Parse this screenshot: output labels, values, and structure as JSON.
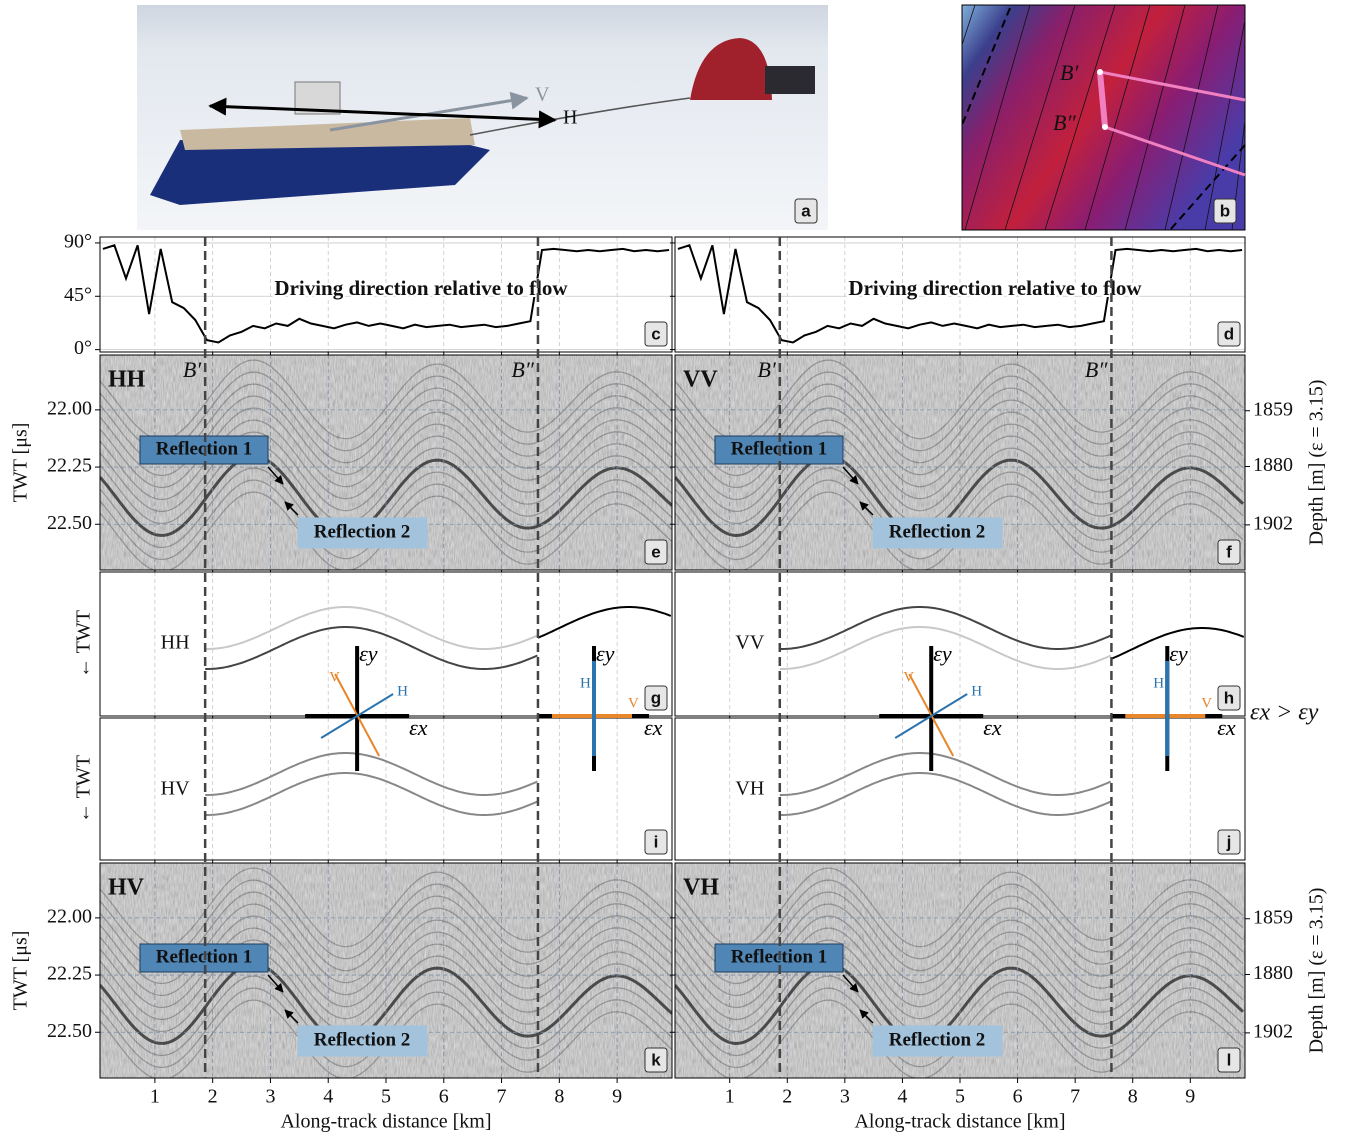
{
  "photo": {
    "panel_label": "a",
    "arrow_labels": [
      "V",
      "H"
    ]
  },
  "map": {
    "panel_label": "b"
  },
  "section_bounds": {
    "values": [
      1.87,
      7.63
    ],
    "labels": [
      "B′",
      "B″"
    ]
  },
  "chart_data": [
    {
      "type": "line",
      "panel_label": "c",
      "annotation": "Driving direction relative to flow",
      "color": "#000000",
      "x": [
        0.1,
        0.3,
        0.5,
        0.7,
        0.9,
        1.1,
        1.3,
        1.5,
        1.7,
        1.9,
        2.1,
        2.3,
        2.5,
        2.7,
        2.9,
        3.1,
        3.3,
        3.5,
        3.7,
        3.9,
        4.1,
        4.3,
        4.5,
        4.7,
        4.9,
        5.1,
        5.3,
        5.5,
        5.7,
        5.9,
        6.1,
        6.3,
        6.5,
        6.7,
        6.9,
        7.1,
        7.3,
        7.5,
        7.7,
        7.9,
        8.1,
        8.3,
        8.5,
        8.7,
        8.9,
        9.1,
        9.3,
        9.5,
        9.7,
        9.9
      ],
      "values": [
        85,
        88,
        60,
        88,
        30,
        85,
        40,
        35,
        25,
        8,
        6,
        12,
        15,
        20,
        18,
        22,
        20,
        26,
        22,
        20,
        18,
        21,
        23,
        20,
        22,
        20,
        18,
        21,
        19,
        20,
        21,
        19,
        20,
        21,
        19,
        20,
        22,
        24,
        84,
        85,
        84,
        83,
        84,
        83,
        84,
        85,
        83,
        84,
        83,
        84
      ],
      "xlim": [
        0.05,
        9.95
      ],
      "xticks": [
        1,
        2,
        3,
        4,
        5,
        6,
        7,
        8,
        9
      ],
      "ylim": [
        -2,
        95
      ],
      "yticks": [
        {
          "value": 0,
          "label": "0°"
        },
        {
          "value": 45,
          "label": "45°"
        },
        {
          "value": 90,
          "label": "90°"
        }
      ],
      "grid": true
    },
    {
      "type": "line",
      "panel_label": "d",
      "annotation": "Driving direction relative to flow",
      "color": "#000000",
      "x": [
        0.1,
        0.3,
        0.5,
        0.7,
        0.9,
        1.1,
        1.3,
        1.5,
        1.7,
        1.9,
        2.1,
        2.3,
        2.5,
        2.7,
        2.9,
        3.1,
        3.3,
        3.5,
        3.7,
        3.9,
        4.1,
        4.3,
        4.5,
        4.7,
        4.9,
        5.1,
        5.3,
        5.5,
        5.7,
        5.9,
        6.1,
        6.3,
        6.5,
        6.7,
        6.9,
        7.1,
        7.3,
        7.5,
        7.7,
        7.9,
        8.1,
        8.3,
        8.5,
        8.7,
        8.9,
        9.1,
        9.3,
        9.5,
        9.7,
        9.9
      ],
      "values": [
        85,
        88,
        60,
        88,
        30,
        85,
        40,
        35,
        25,
        8,
        6,
        12,
        15,
        20,
        18,
        22,
        20,
        26,
        22,
        20,
        18,
        21,
        23,
        20,
        22,
        20,
        18,
        21,
        19,
        20,
        21,
        19,
        20,
        21,
        19,
        20,
        22,
        24,
        84,
        85,
        84,
        83,
        84,
        83,
        84,
        85,
        83,
        84,
        83,
        84
      ],
      "xlim": [
        0.05,
        9.95
      ],
      "xticks": [
        1,
        2,
        3,
        4,
        5,
        6,
        7,
        8,
        9
      ],
      "ylim": [
        -2,
        95
      ],
      "yticks": [
        0,
        45,
        90
      ],
      "grid": true
    },
    {
      "type": "radargram",
      "panel_label": "e",
      "title": "HH",
      "ylabel": "TWT [μs]",
      "annotations": [
        "Reflection 1",
        "Reflection 2"
      ],
      "xlim": [
        0.05,
        9.95
      ],
      "xticks": [
        1,
        2,
        3,
        4,
        5,
        6,
        7,
        8,
        9
      ],
      "ylim": [
        22.7,
        21.76
      ],
      "yticks": [
        {
          "value": 22,
          "label": "22.00"
        },
        {
          "value": 22.25,
          "label": "22.25"
        },
        {
          "value": 22.5,
          "label": "22.50"
        }
      ],
      "grid": true
    },
    {
      "type": "radargram",
      "panel_label": "f",
      "title": "VV",
      "y2label": "Depth [m] (ε = 3.15)",
      "annotations": [
        "Reflection 1",
        "Reflection 2"
      ],
      "xlim": [
        0.05,
        9.95
      ],
      "xticks": [
        1,
        2,
        3,
        4,
        5,
        6,
        7,
        8,
        9
      ],
      "ylim": [
        22.7,
        21.76
      ],
      "yticks": [
        22,
        22.25,
        22.5
      ],
      "y2lim": [
        1919,
        1838
      ],
      "y2ticks": [
        1859,
        1880,
        1902
      ],
      "grid": true
    },
    {
      "type": "schematic",
      "panel_label": "g",
      "mode": "HH",
      "ylabel": "← TWT",
      "axis_labels": [
        "εy",
        "εx",
        "V",
        "H"
      ],
      "colors": [
        "#c8c8c8",
        "#444444",
        "#000000"
      ],
      "xlim": [
        0.05,
        9.95
      ],
      "xticks": [
        1,
        2,
        3,
        4,
        5,
        6,
        7,
        8,
        9
      ],
      "grid": true
    },
    {
      "type": "schematic",
      "panel_label": "h",
      "mode": "VV",
      "axis_labels": [
        "εy",
        "εx",
        "V",
        "H"
      ],
      "note": "εx > εy",
      "colors": [
        "#444444",
        "#c8c8c8",
        "#000000"
      ],
      "xlim": [
        0.05,
        9.95
      ],
      "xticks": [
        1,
        2,
        3,
        4,
        5,
        6,
        7,
        8,
        9
      ],
      "grid": true
    },
    {
      "type": "schematic",
      "panel_label": "i",
      "mode": "HV",
      "ylabel": "← TWT",
      "colors": [
        "#888888",
        "#888888"
      ],
      "xlim": [
        0.05,
        9.95
      ],
      "xticks": [
        1,
        2,
        3,
        4,
        5,
        6,
        7,
        8,
        9
      ],
      "grid": true
    },
    {
      "type": "schematic",
      "panel_label": "j",
      "mode": "VH",
      "colors": [
        "#888888",
        "#888888"
      ],
      "xlim": [
        0.05,
        9.95
      ],
      "xticks": [
        1,
        2,
        3,
        4,
        5,
        6,
        7,
        8,
        9
      ],
      "grid": true
    },
    {
      "type": "radargram",
      "panel_label": "k",
      "title": "HV",
      "ylabel": "TWT [μs]",
      "xlabel": "Along-track distance [km]",
      "annotations": [
        "Reflection 1",
        "Reflection 2"
      ],
      "xlim": [
        0.05,
        9.95
      ],
      "xticks": [
        1,
        2,
        3,
        4,
        5,
        6,
        7,
        8,
        9
      ],
      "ylim": [
        22.7,
        21.76
      ],
      "yticks": [
        {
          "value": 22,
          "label": "22.00"
        },
        {
          "value": 22.25,
          "label": "22.25"
        },
        {
          "value": 22.5,
          "label": "22.50"
        }
      ],
      "grid": true
    },
    {
      "type": "radargram",
      "panel_label": "l",
      "title": "VH",
      "y2label": "Depth [m] (ε = 3.15)",
      "xlabel": "Along-track distance [km]",
      "annotations": [
        "Reflection 1",
        "Reflection 2"
      ],
      "xlim": [
        0.05,
        9.95
      ],
      "xticks": [
        1,
        2,
        3,
        4,
        5,
        6,
        7,
        8,
        9
      ],
      "ylim": [
        22.7,
        21.76
      ],
      "yticks": [
        22,
        22.25,
        22.5
      ],
      "y2lim": [
        1919,
        1838
      ],
      "y2ticks": [
        1859,
        1880,
        1902
      ],
      "grid": true
    }
  ]
}
